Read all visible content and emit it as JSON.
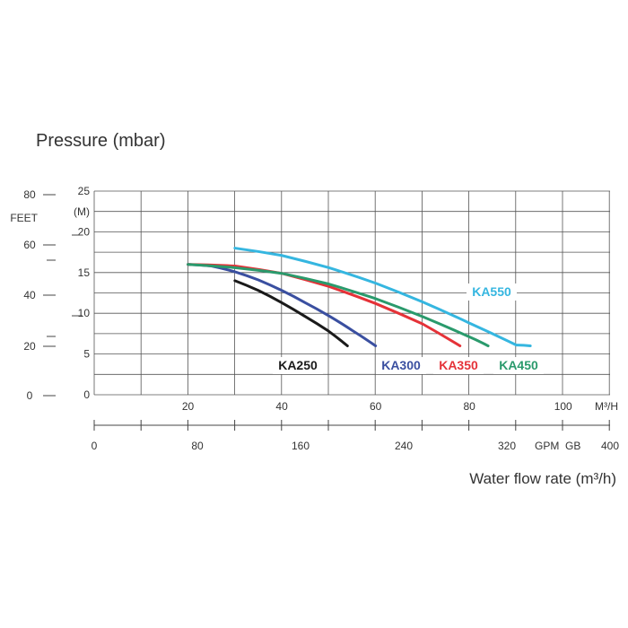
{
  "chart_data": {
    "type": "line",
    "title": "Pressure (mbar)",
    "xlabel": "Water flow rate (m³/h)",
    "y_axes": {
      "feet": {
        "unit": "FEET",
        "ticks": [
          "80",
          "60",
          "40",
          "20",
          "0"
        ]
      },
      "meters": {
        "unit": "(M)",
        "ticks": [
          "25",
          "20",
          "15",
          "10",
          "5",
          "0"
        ],
        "range": [
          0,
          25
        ]
      }
    },
    "x_axes": {
      "m3h": {
        "unit": "M³/H",
        "ticks": [
          "20",
          "40",
          "60",
          "80",
          "100"
        ],
        "range": [
          0,
          110
        ]
      },
      "gpm": {
        "unit": "GPM",
        "extra_label": "GB",
        "ticks": [
          "0",
          "80",
          "160",
          "240",
          "320",
          "400"
        ],
        "range": [
          0,
          400
        ]
      }
    },
    "grid": true,
    "series": [
      {
        "name": "KA250",
        "color": "#1a1a1a",
        "x": [
          30,
          35,
          40,
          45,
          50,
          54
        ],
        "y": [
          14,
          12.8,
          11.3,
          9.6,
          7.8,
          6
        ]
      },
      {
        "name": "KA300",
        "color": "#3a4fa0",
        "x": [
          20,
          25,
          30,
          35,
          40,
          45,
          50,
          55,
          60
        ],
        "y": [
          16,
          15.8,
          15.1,
          14.1,
          12.8,
          11.3,
          9.7,
          7.9,
          6
        ]
      },
      {
        "name": "KA350",
        "color": "#e53238",
        "x": [
          20,
          30,
          40,
          50,
          60,
          70,
          78
        ],
        "y": [
          16,
          15.8,
          14.9,
          13.3,
          11.2,
          8.7,
          6
        ]
      },
      {
        "name": "KA450",
        "color": "#2a9a6c",
        "x": [
          20,
          30,
          40,
          50,
          60,
          70,
          80,
          84
        ],
        "y": [
          16,
          15.6,
          14.9,
          13.6,
          11.8,
          9.6,
          7.1,
          6
        ]
      },
      {
        "name": "KA550",
        "color": "#35b6e0",
        "x": [
          30,
          40,
          50,
          60,
          70,
          80,
          90,
          93
        ],
        "y": [
          18,
          17.1,
          15.6,
          13.7,
          11.4,
          8.8,
          6.1,
          6
        ]
      }
    ]
  }
}
